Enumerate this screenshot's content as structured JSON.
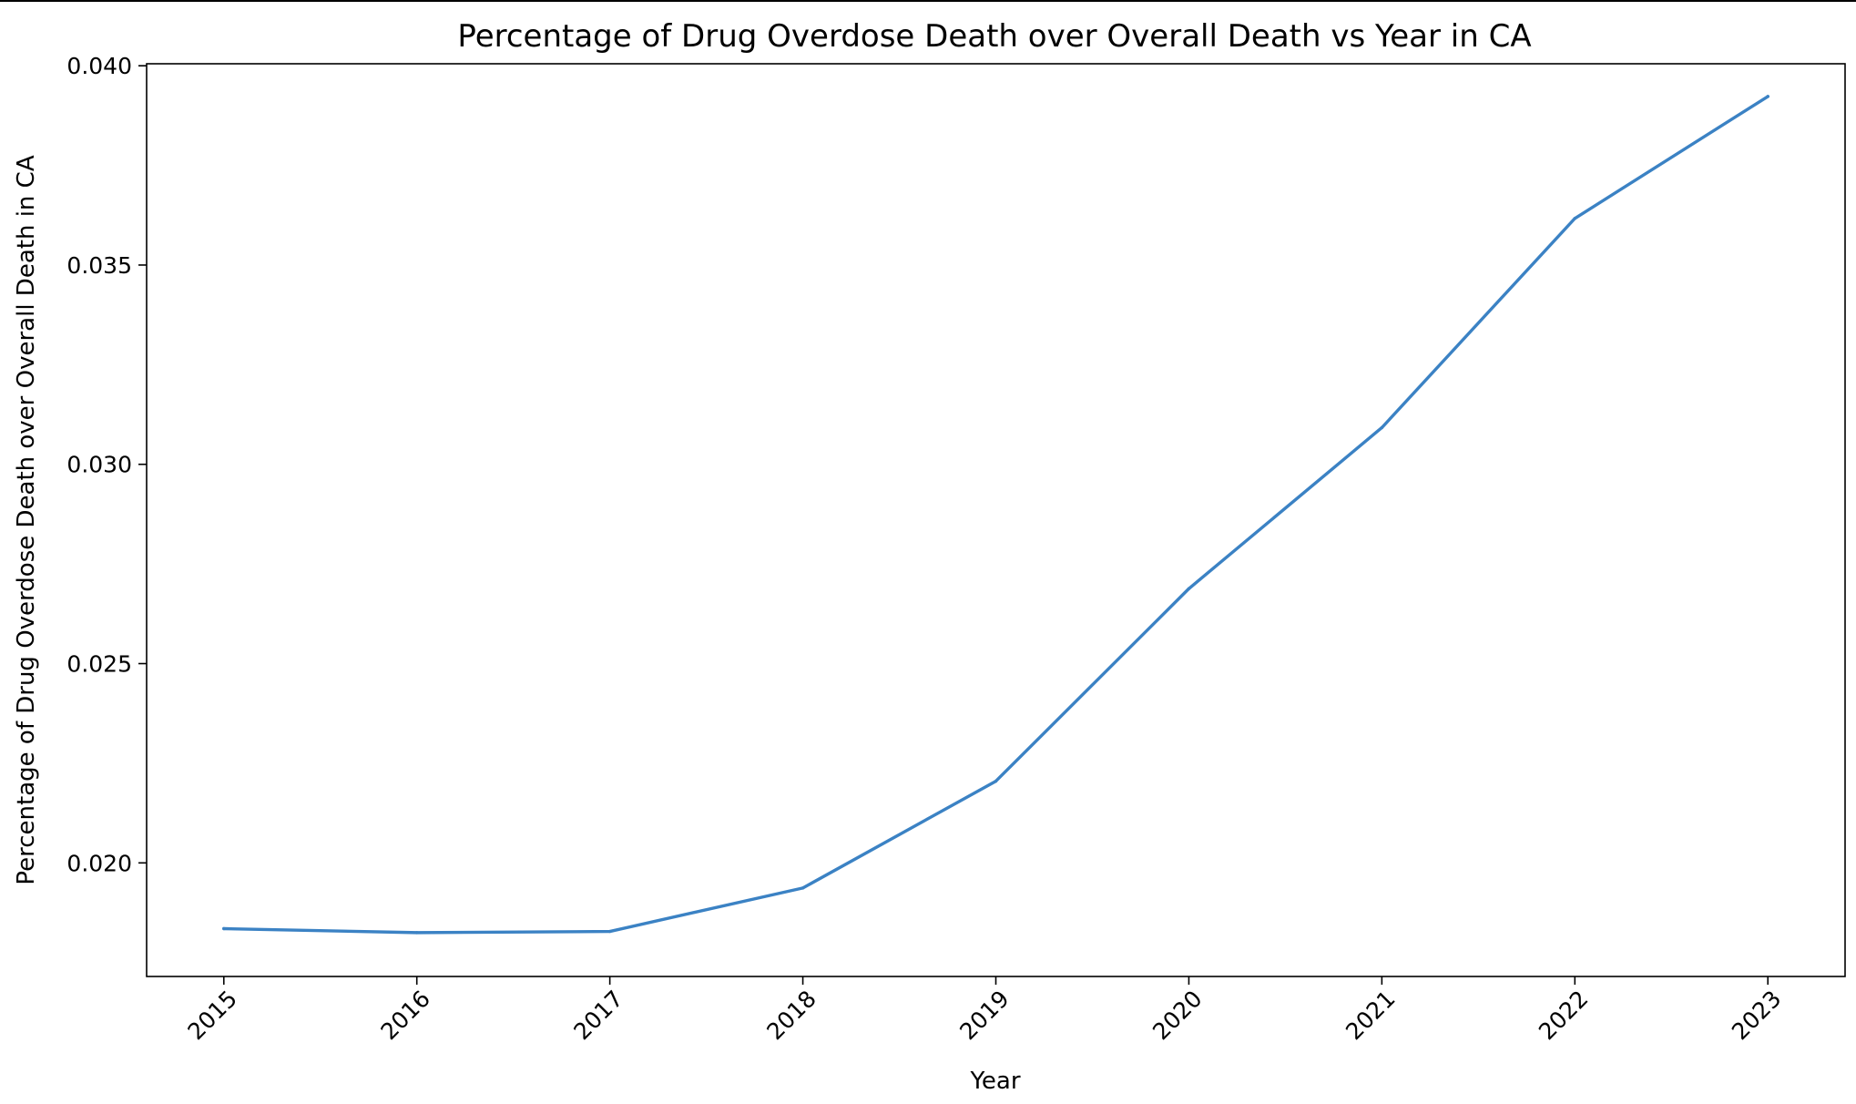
{
  "chart_data": {
    "type": "line",
    "title": "Percentage of Drug Overdose Death over Overall Death vs Year in CA",
    "xlabel": "Year",
    "ylabel": "Percentage of Drug Overdose Death over Overall Death in CA",
    "x": [
      2015,
      2016,
      2017,
      2018,
      2019,
      2020,
      2021,
      2022,
      2023
    ],
    "x_tick_labels": [
      "2015",
      "2016",
      "2017",
      "2018",
      "2019",
      "2020",
      "2021",
      "2022",
      "2023"
    ],
    "y_ticks": [
      0.02,
      0.025,
      0.03,
      0.035,
      0.04
    ],
    "y_tick_labels": [
      "0.020",
      "0.025",
      "0.030",
      "0.035",
      "0.040"
    ],
    "series": [
      {
        "values": [
          0.01835,
          0.01825,
          0.01828,
          0.01937,
          0.02205,
          0.02688,
          0.03092,
          0.03617,
          0.03923
        ]
      }
    ],
    "xlim": [
      2014.6,
      2023.4
    ],
    "ylim": [
      0.01715,
      0.04005
    ],
    "line_color": "#3b82c4",
    "x_tick_rotation_deg": 45,
    "grid": false,
    "legend": "none"
  }
}
